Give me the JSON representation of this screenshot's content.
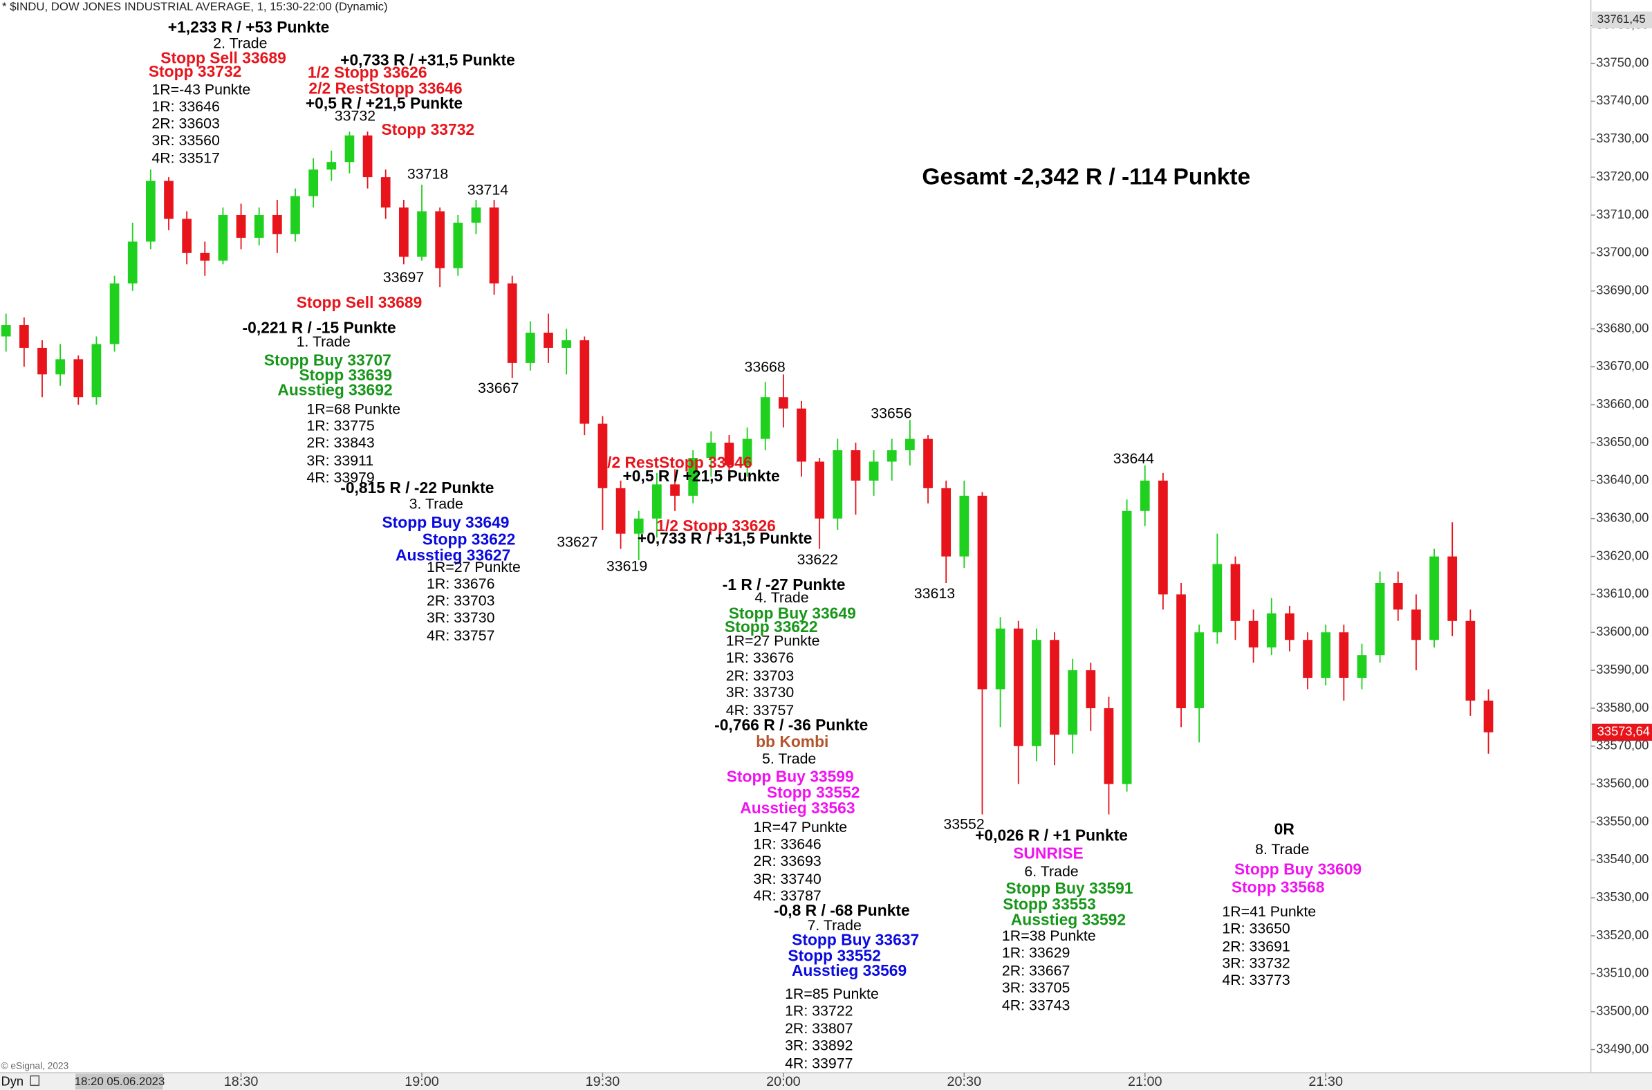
{
  "header": "* $INDU, DOW JONES INDUSTRIAL AVERAGE, 1, 15:30-22:00 (Dynamic)",
  "copyright": "© eSignal, 2023",
  "footer_mode": "Dyn",
  "chart_data": {
    "type": "candlestick",
    "title": "Gesamt -2,342 R / -114 Punkte",
    "x": [
      "17:51",
      "17:54",
      "17:57",
      "18:00",
      "18:03",
      "18:06",
      "18:09",
      "18:12",
      "18:15",
      "18:18",
      "18:21",
      "18:24",
      "18:27",
      "18:30",
      "18:33",
      "18:36",
      "18:39",
      "18:42",
      "18:45",
      "18:48",
      "18:51",
      "18:54",
      "18:57",
      "19:00",
      "19:03",
      "19:06",
      "19:09",
      "19:12",
      "19:15",
      "19:18",
      "19:21",
      "19:24",
      "19:27",
      "19:30",
      "19:33",
      "19:36",
      "19:39",
      "19:42",
      "19:45",
      "19:48",
      "19:51",
      "19:54",
      "19:57",
      "20:00",
      "20:03",
      "20:06",
      "20:09",
      "20:12",
      "20:15",
      "20:18",
      "20:21",
      "20:24",
      "20:27",
      "20:30",
      "20:33",
      "20:36",
      "20:39",
      "20:42",
      "20:45",
      "20:48",
      "20:51",
      "20:54",
      "20:57",
      "21:00",
      "21:03",
      "21:06",
      "21:09",
      "21:12",
      "21:15",
      "21:18",
      "21:21",
      "21:24",
      "21:27",
      "21:30",
      "21:33",
      "21:36",
      "21:39",
      "21:42",
      "21:45",
      "21:48",
      "21:51",
      "21:54",
      "21:57"
    ],
    "open": [
      33678,
      33681,
      33675,
      33668,
      33672,
      33662,
      33676,
      33692,
      33703,
      33719,
      33709,
      33700,
      33698,
      33710,
      33704,
      33710,
      33705,
      33715,
      33722,
      33724,
      33731,
      33720,
      33712,
      33699,
      33711,
      33696,
      33708,
      33712,
      33692,
      33671,
      33679,
      33675,
      33677,
      33655,
      33638,
      33626,
      33630,
      33639,
      33636,
      33646,
      33650,
      33644,
      33651,
      33662,
      33659,
      33645,
      33630,
      33648,
      33640,
      33645,
      33648,
      33651,
      33638,
      33620,
      33636,
      33585,
      33601,
      33570,
      33598,
      33573,
      33590,
      33580,
      33560,
      33632,
      33640,
      33610,
      33580,
      33600,
      33618,
      33603,
      33596,
      33605,
      33598,
      33588,
      33600,
      33588,
      33594,
      33613,
      33606,
      33598,
      33620,
      33603,
      33582
    ],
    "high": [
      33684,
      33683,
      33677,
      33676,
      33673,
      33678,
      33694,
      33708,
      33722,
      33720,
      33711,
      33703,
      33712,
      33713,
      33712,
      33714,
      33717,
      33725,
      33727,
      33732,
      33732,
      33722,
      33714,
      33718,
      33712,
      33710,
      33714,
      33714,
      33694,
      33682,
      33684,
      33680,
      33678,
      33657,
      33640,
      33632,
      33642,
      33643,
      33648,
      33653,
      33652,
      33654,
      33666,
      33668,
      33661,
      33646,
      33651,
      33650,
      33648,
      33651,
      33656,
      33652,
      33640,
      33640,
      33637,
      33604,
      33603,
      33601,
      33600,
      33593,
      33592,
      33583,
      33635,
      33644,
      33642,
      33613,
      33602,
      33626,
      33620,
      33606,
      33609,
      33607,
      33600,
      33602,
      33602,
      33597,
      33616,
      33616,
      33610,
      33622,
      33629,
      33606,
      33585
    ],
    "low": [
      33674,
      33670,
      33662,
      33665,
      33660,
      33660,
      33674,
      33690,
      33701,
      33706,
      33697,
      33694,
      33697,
      33701,
      33702,
      33700,
      33703,
      33712,
      33719,
      33721,
      33717,
      33709,
      33697,
      33698,
      33691,
      33694,
      33705,
      33689,
      33667,
      33669,
      33671,
      33668,
      33652,
      33627,
      33622,
      33619,
      33625,
      33632,
      33634,
      33641,
      33640,
      33641,
      33648,
      33654,
      33641,
      33622,
      33627,
      33631,
      33636,
      33640,
      33644,
      33634,
      33613,
      33617,
      33552,
      33575,
      33560,
      33566,
      33565,
      33568,
      33574,
      33552,
      33558,
      33628,
      33606,
      33575,
      33571,
      33597,
      33598,
      33592,
      33594,
      33595,
      33585,
      33586,
      33582,
      33585,
      33592,
      33603,
      33590,
      33596,
      33599,
      33578,
      33568
    ],
    "close": [
      33681,
      33675,
      33668,
      33672,
      33662,
      33676,
      33692,
      33703,
      33719,
      33709,
      33700,
      33698,
      33710,
      33704,
      33710,
      33705,
      33715,
      33722,
      33724,
      33731,
      33720,
      33712,
      33699,
      33711,
      33696,
      33708,
      33712,
      33692,
      33671,
      33679,
      33675,
      33677,
      33655,
      33638,
      33626,
      33630,
      33639,
      33636,
      33646,
      33650,
      33644,
      33651,
      33662,
      33659,
      33645,
      33630,
      33648,
      33640,
      33645,
      33648,
      33651,
      33638,
      33620,
      33636,
      33585,
      33601,
      33570,
      33598,
      33573,
      33590,
      33580,
      33560,
      33632,
      33640,
      33610,
      33580,
      33600,
      33618,
      33603,
      33596,
      33605,
      33598,
      33588,
      33600,
      33588,
      33594,
      33613,
      33606,
      33598,
      33620,
      33603,
      33582,
      33573.64
    ],
    "up_color": "#1fd01f",
    "down_color": "#e8141b",
    "xlim": [
      "17:50",
      "22:14"
    ],
    "xticks": [
      "18:30",
      "19:00",
      "19:30",
      "20:00",
      "20:30",
      "21:00",
      "21:30"
    ],
    "ylim": [
      33483.9,
      33766.7
    ],
    "yticks": [
      {
        "value": 33490,
        "label": "33490,00"
      },
      {
        "value": 33500,
        "label": "33500,00"
      },
      {
        "value": 33510,
        "label": "33510,00"
      },
      {
        "value": 33520,
        "label": "33520,00"
      },
      {
        "value": 33530,
        "label": "33530,00"
      },
      {
        "value": 33540,
        "label": "33540,00"
      },
      {
        "value": 33550,
        "label": "33550,00"
      },
      {
        "value": 33560,
        "label": "33560,00"
      },
      {
        "value": 33570,
        "label": "33570,00"
      },
      {
        "value": 33580,
        "label": "33580,00"
      },
      {
        "value": 33590,
        "label": "33590,00"
      },
      {
        "value": 33600,
        "label": "33600,00"
      },
      {
        "value": 33610,
        "label": "33610,00"
      },
      {
        "value": 33620,
        "label": "33620,00"
      },
      {
        "value": 33630,
        "label": "33630,00"
      },
      {
        "value": 33640,
        "label": "33640,00"
      },
      {
        "value": 33650,
        "label": "33650,00"
      },
      {
        "value": 33660,
        "label": "33660,00"
      },
      {
        "value": 33670,
        "label": "33670,00"
      },
      {
        "value": 33680,
        "label": "33680,00"
      },
      {
        "value": 33690,
        "label": "33690,00"
      },
      {
        "value": 33700,
        "label": "33700,00"
      },
      {
        "value": 33710,
        "label": "33710,00"
      },
      {
        "value": 33720,
        "label": "33720,00"
      },
      {
        "value": 33730,
        "label": "33730,00"
      },
      {
        "value": 33740,
        "label": "33740,00"
      },
      {
        "value": 33750,
        "label": "33750,00"
      },
      {
        "value": 33760,
        "label": "33760,00"
      }
    ],
    "cursor_label": "18:20 05.06.2023",
    "last_price": {
      "value": 33573.64,
      "label": "33573,64"
    },
    "high_marker": {
      "value": 33761.45,
      "label": "33761,45"
    },
    "annotations": [
      {
        "text": "+1,233 R / +53 Punkte",
        "color": "#000000"
      },
      {
        "text": "2. Trade",
        "color": "#000000"
      },
      {
        "text": "Stopp Sell 33689",
        "color": "#e8141b"
      },
      {
        "text": "Stopp 33732",
        "color": "#e8141b"
      },
      {
        "text": "1R=-43 Punkte",
        "color": "#000000"
      },
      {
        "text": "1R: 33646",
        "color": "#000000"
      },
      {
        "text": "2R: 33603",
        "color": "#000000"
      },
      {
        "text": "3R: 33560",
        "color": "#000000"
      },
      {
        "text": "4R: 33517",
        "color": "#000000"
      },
      {
        "text": "+0,733 R / +31,5 Punkte",
        "color": "#000000"
      },
      {
        "text": "1/2 Stopp 33626",
        "color": "#e8141b"
      },
      {
        "text": "2/2 RestStopp 33646",
        "color": "#e8141b"
      },
      {
        "text": "+0,5 R / +21,5 Punkte",
        "color": "#000000"
      },
      {
        "text": "33732",
        "color": "#000000"
      },
      {
        "text": "Stopp 33732",
        "color": "#e8141b"
      },
      {
        "text": "33718",
        "color": "#000000"
      },
      {
        "text": "33714",
        "color": "#000000"
      },
      {
        "text": "33697",
        "color": "#000000"
      },
      {
        "text": "Stopp Sell 33689",
        "color": "#e8141b"
      },
      {
        "text": "-0,221 R / -15 Punkte",
        "color": "#000000"
      },
      {
        "text": "1. Trade",
        "color": "#000000"
      },
      {
        "text": "Stopp Buy 33707",
        "color": "#17961a"
      },
      {
        "text": "Stopp 33639",
        "color": "#17961a"
      },
      {
        "text": "Ausstieg 33692",
        "color": "#17961a"
      },
      {
        "text": "33667",
        "color": "#000000"
      },
      {
        "text": "1R=68 Punkte",
        "color": "#000000"
      },
      {
        "text": "1R: 33775",
        "color": "#000000"
      },
      {
        "text": "2R: 33843",
        "color": "#000000"
      },
      {
        "text": "3R: 33911",
        "color": "#000000"
      },
      {
        "text": "4R: 33979",
        "color": "#000000"
      },
      {
        "text": "-0,815 R / -22 Punkte",
        "color": "#000000"
      },
      {
        "text": "3. Trade",
        "color": "#000000"
      },
      {
        "text": "Stopp Buy 33649",
        "color": "#0a0ae0"
      },
      {
        "text": "Stopp 33622",
        "color": "#0a0ae0"
      },
      {
        "text": "Ausstieg 33627",
        "color": "#0a0ae0"
      },
      {
        "text": "1R=27 Punkte",
        "color": "#000000"
      },
      {
        "text": "1R: 33676",
        "color": "#000000"
      },
      {
        "text": "2R: 33703",
        "color": "#000000"
      },
      {
        "text": "3R: 33730",
        "color": "#000000"
      },
      {
        "text": "4R: 33757",
        "color": "#000000"
      },
      {
        "text": "33627",
        "color": "#000000"
      },
      {
        "text": "33619",
        "color": "#000000"
      },
      {
        "text": "2/2 RestStopp 33646",
        "color": "#e8141b"
      },
      {
        "text": "+0,5 R / +21,5 Punkte",
        "color": "#000000"
      },
      {
        "text": "1/2 Stopp 33626",
        "color": "#e8141b"
      },
      {
        "text": "+0,733 R / +31,5 Punkte",
        "color": "#000000"
      },
      {
        "text": "33668",
        "color": "#000000"
      },
      {
        "text": "33656",
        "color": "#000000"
      },
      {
        "text": "33622",
        "color": "#000000"
      },
      {
        "text": "33613",
        "color": "#000000"
      },
      {
        "text": "-1 R / -27 Punkte",
        "color": "#000000"
      },
      {
        "text": "4. Trade",
        "color": "#000000"
      },
      {
        "text": "Stopp Buy 33649",
        "color": "#17961a"
      },
      {
        "text": "Stopp 33622",
        "color": "#17961a"
      },
      {
        "text": "1R=27 Punkte",
        "color": "#000000"
      },
      {
        "text": "1R: 33676",
        "color": "#000000"
      },
      {
        "text": "2R: 33703",
        "color": "#000000"
      },
      {
        "text": "3R: 33730",
        "color": "#000000"
      },
      {
        "text": "4R: 33757",
        "color": "#000000"
      },
      {
        "text": "-0,766 R / -36 Punkte",
        "color": "#000000"
      },
      {
        "text": "bb Kombi",
        "color": "#b5542b"
      },
      {
        "text": "5. Trade",
        "color": "#000000"
      },
      {
        "text": "Stopp Buy 33599",
        "color": "#f013f0"
      },
      {
        "text": "Stopp 33552",
        "color": "#f013f0"
      },
      {
        "text": "Ausstieg 33563",
        "color": "#f013f0"
      },
      {
        "text": "1R=47 Punkte",
        "color": "#000000"
      },
      {
        "text": "1R: 33646",
        "color": "#000000"
      },
      {
        "text": "2R: 33693",
        "color": "#000000"
      },
      {
        "text": "3R: 33740",
        "color": "#000000"
      },
      {
        "text": "4R: 33787",
        "color": "#000000"
      },
      {
        "text": "-0,8 R / -68 Punkte",
        "color": "#000000"
      },
      {
        "text": "7. Trade",
        "color": "#000000"
      },
      {
        "text": "Stopp Buy 33637",
        "color": "#0a0ae0"
      },
      {
        "text": "Stopp 33552",
        "color": "#0a0ae0"
      },
      {
        "text": "Ausstieg 33569",
        "color": "#0a0ae0"
      },
      {
        "text": "1R=85 Punkte",
        "color": "#000000"
      },
      {
        "text": "1R: 33722",
        "color": "#000000"
      },
      {
        "text": "2R: 33807",
        "color": "#000000"
      },
      {
        "text": "3R: 33892",
        "color": "#000000"
      },
      {
        "text": "4R: 33977",
        "color": "#000000"
      },
      {
        "text": "33644",
        "color": "#000000"
      },
      {
        "text": "33552",
        "color": "#000000"
      },
      {
        "text": "+0,026 R / +1 Punkte",
        "color": "#000000"
      },
      {
        "text": "SUNRISE",
        "color": "#f013f0"
      },
      {
        "text": "6. Trade",
        "color": "#000000"
      },
      {
        "text": "Stopp Buy 33591",
        "color": "#17961a"
      },
      {
        "text": "Stopp 33553",
        "color": "#17961a"
      },
      {
        "text": "Ausstieg 33592",
        "color": "#17961a"
      },
      {
        "text": "1R=38 Punkte",
        "color": "#000000"
      },
      {
        "text": "1R: 33629",
        "color": "#000000"
      },
      {
        "text": "2R: 33667",
        "color": "#000000"
      },
      {
        "text": "3R: 33705",
        "color": "#000000"
      },
      {
        "text": "4R: 33743",
        "color": "#000000"
      },
      {
        "text": "0R",
        "color": "#000000"
      },
      {
        "text": "8. Trade",
        "color": "#000000"
      },
      {
        "text": "Stopp Buy 33609",
        "color": "#f013f0"
      },
      {
        "text": "Stopp 33568",
        "color": "#f013f0"
      },
      {
        "text": "1R=41 Punkte",
        "color": "#000000"
      },
      {
        "text": "1R: 33650",
        "color": "#000000"
      },
      {
        "text": "2R: 33691",
        "color": "#000000"
      },
      {
        "text": "3R: 33732",
        "color": "#000000"
      },
      {
        "text": "4R: 33773",
        "color": "#000000"
      }
    ]
  }
}
